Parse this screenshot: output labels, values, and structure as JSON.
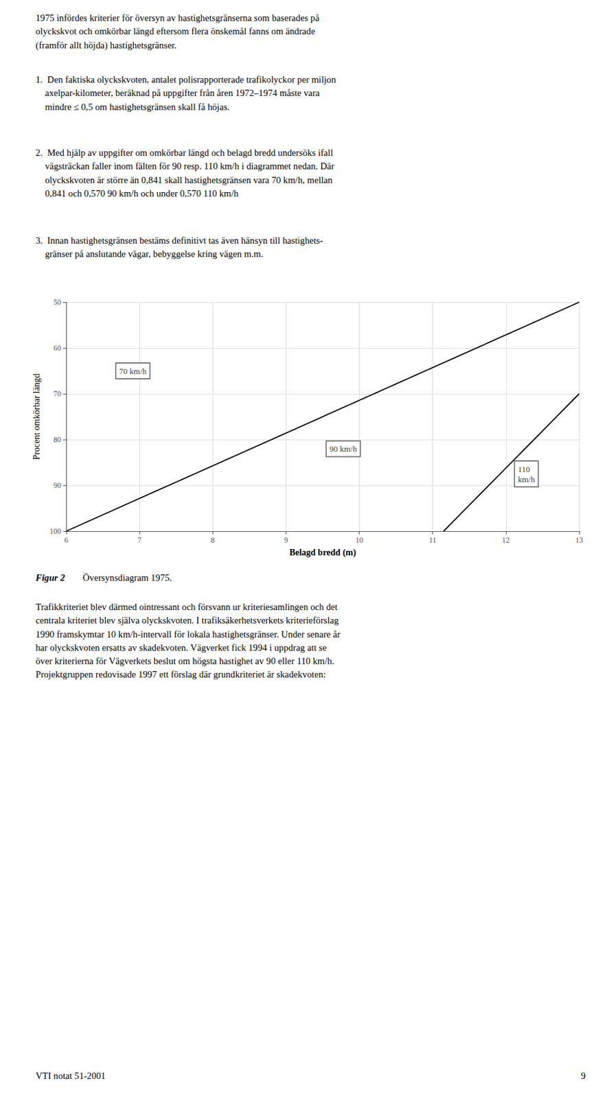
{
  "chart_data": {
    "type": "line",
    "xlabel": "Belagd bredd (m)",
    "ylabel": "Procent omkörbar längd",
    "xlim": [
      6,
      13
    ],
    "ylim": [
      100,
      50
    ],
    "xticks": [
      6,
      7,
      8,
      9,
      10,
      11,
      12,
      13
    ],
    "yticks": [
      50,
      60,
      70,
      80,
      90,
      100
    ],
    "grid": true,
    "series": [
      {
        "x": [
          6,
          13
        ],
        "values": [
          100,
          50
        ],
        "color": "#000000"
      },
      {
        "x": [
          11.15,
          13
        ],
        "values": [
          100,
          70
        ],
        "color": "#000000"
      }
    ],
    "annotations": [
      {
        "text": "70 km/h",
        "x": 6.68,
        "y": 65
      },
      {
        "text": "90 km/h",
        "x": 9.55,
        "y": 82
      },
      {
        "text": "110\nkm/h",
        "x": 12.12,
        "y": 87.5
      }
    ]
  },
  "page_text": [
    "1975 infördes kriterier för översyn av hastighetsgränserna som baserades på\nolyckskvot och omkörbar längd eftersom flera önskemål fanns om ändrade\n(framför allt höjda) hastighetsgränser.",
    "1.  Den faktiska olyckskvoten, antalet polisrapporterade trafikolyckor per miljon\n    axelpar-kilometer, beräknad på uppgifter från åren 1972–1974 måste vara\n    mindre ≤ 0,5 om hastighetsgränsen skall få höjas.",
    "2.  Med hjälp av uppgifter om omkörbar längd och belagd bredd undersöks ifall\n    vägsträckan faller inom fälten för 90 resp. 110 km/h i diagrammet nedan. Där\n    olyckskvoten är större än 0,841 skall hastighetsgränsen vara 70 km/h, mellan\n    0,841 och 0,570 90 km/h och under 0,570 110 km/h",
    "3.  Innan hastighetsgränsen bestäms definitivt tas även hänsyn till hastighets-\n    gränser på anslutande vägar, bebyggelse kring vägen m.m.",
    "Figur 2",
    "Översynsdiagram 1975.",
    "Trafikkriteriet blev därmed ointressant och försvann ur kriteriesamlingen och det\ncentrala kriteriet blev själva olyckskvoten. I trafiksäkerhetsverkets kriterieförslag\n1990 framskymtar 10 km/h-intervall för lokala hastighetsgränser. Under senare år\nhar olyckskvoten ersatts av skadekvoten. Vägverket fick 1994 i uppdrag att se\növer kriterierna för Vägverkets beslut om högsta hastighet av 90 eller 110 km/h.\nProjektgruppen redovisade 1997 ett förslag där grundkriteriet är skadekvoten:",
    "VTI notat 51-2001",
    "9"
  ]
}
